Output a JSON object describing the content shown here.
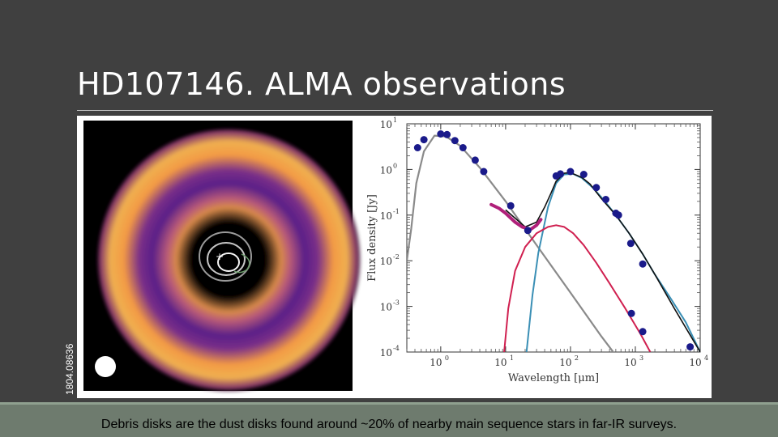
{
  "slide": {
    "title": "HD107146. ALMA observations",
    "side_identifier": "1804.08636",
    "footer": "Debris disks are the dust disks found around ~20% of nearby main sequence stars in far-IR surveys."
  },
  "colors": {
    "background": "#404040",
    "footer_bar": "#6e7b6e",
    "ring_outer": "#f0a040",
    "ring_inner": "#6a2a88",
    "stellar_curve": "#8a8a8a",
    "cold_disk_curve": "#3a8fb5",
    "warm_disk_curve": "#d02050",
    "data_points": "#1a1a8a"
  },
  "chart_data": {
    "type": "scatter",
    "xscale": "log",
    "yscale": "log",
    "xlabel": "Wavelength [μm]",
    "ylabel": "Flux density [Jy]",
    "xlim": [
      0.3,
      10000
    ],
    "ylim": [
      0.0001,
      10
    ],
    "x_ticks": [
      {
        "value": 1,
        "base": "10",
        "exp": "0"
      },
      {
        "value": 10,
        "base": "10",
        "exp": "1"
      },
      {
        "value": 100,
        "base": "10",
        "exp": "2"
      },
      {
        "value": 1000,
        "base": "10",
        "exp": "3"
      },
      {
        "value": 10000,
        "base": "10",
        "exp": "4"
      }
    ],
    "y_ticks": [
      {
        "value": 10,
        "base": "10",
        "exp": "1"
      },
      {
        "value": 1,
        "base": "10",
        "exp": "0"
      },
      {
        "value": 0.1,
        "base": "10",
        "exp": "-1"
      },
      {
        "value": 0.01,
        "base": "10",
        "exp": "-2"
      },
      {
        "value": 0.001,
        "base": "10",
        "exp": "-3"
      },
      {
        "value": 0.0001,
        "base": "10",
        "exp": "-4"
      }
    ],
    "points": [
      {
        "x": 0.44,
        "y": 3.0
      },
      {
        "x": 0.55,
        "y": 4.5
      },
      {
        "x": 1.0,
        "y": 6.0
      },
      {
        "x": 1.25,
        "y": 5.8
      },
      {
        "x": 1.65,
        "y": 4.3
      },
      {
        "x": 2.2,
        "y": 3.0
      },
      {
        "x": 3.4,
        "y": 1.6
      },
      {
        "x": 4.6,
        "y": 0.9
      },
      {
        "x": 12,
        "y": 0.16
      },
      {
        "x": 22,
        "y": 0.046
      },
      {
        "x": 60,
        "y": 0.72
      },
      {
        "x": 70,
        "y": 0.8
      },
      {
        "x": 100,
        "y": 0.9
      },
      {
        "x": 160,
        "y": 0.78
      },
      {
        "x": 250,
        "y": 0.4
      },
      {
        "x": 350,
        "y": 0.22
      },
      {
        "x": 500,
        "y": 0.11
      },
      {
        "x": 550,
        "y": 0.1
      },
      {
        "x": 850,
        "y": 0.024
      },
      {
        "x": 1300,
        "y": 0.0085
      },
      {
        "x": 870,
        "y": 0.0007
      },
      {
        "x": 1300,
        "y": 0.00028
      },
      {
        "x": 7000,
        "y": 0.00013
      }
    ],
    "ir_spectrum": {
      "x": [
        6,
        8,
        10,
        14,
        18,
        24,
        30,
        35
      ],
      "y": [
        0.17,
        0.14,
        0.11,
        0.07,
        0.055,
        0.048,
        0.06,
        0.08
      ]
    },
    "series_curves": [
      {
        "key": "stellar",
        "x": [
          0.3,
          0.35,
          0.42,
          0.55,
          0.8,
          1.2,
          2,
          4,
          10,
          30,
          100,
          300,
          600
        ],
        "y": [
          0.01,
          0.05,
          0.5,
          2.5,
          5.5,
          5.3,
          3.3,
          1.1,
          0.2,
          0.022,
          0.002,
          0.00022,
          6e-05
        ]
      },
      {
        "key": "cold_disk",
        "x": [
          21,
          26,
          32,
          45,
          60,
          80,
          110,
          150,
          220,
          330,
          500,
          800,
          1300,
          2000,
          3500,
          6000,
          10000
        ],
        "y": [
          0.0001,
          0.0018,
          0.015,
          0.15,
          0.5,
          0.78,
          0.8,
          0.65,
          0.4,
          0.21,
          0.1,
          0.04,
          0.014,
          0.005,
          0.0015,
          0.00045,
          0.0001
        ]
      },
      {
        "key": "warm_disk",
        "x": [
          9.5,
          11,
          14,
          20,
          30,
          45,
          60,
          80,
          110,
          160,
          250,
          400,
          700,
          1200,
          1700
        ],
        "y": [
          0.0001,
          0.0009,
          0.006,
          0.02,
          0.04,
          0.055,
          0.06,
          0.055,
          0.04,
          0.022,
          0.009,
          0.0032,
          0.0009,
          0.00025,
          0.0001
        ]
      },
      {
        "key": "total",
        "x": [
          10,
          20,
          30,
          40,
          50,
          60,
          80,
          100,
          150,
          200,
          300,
          500,
          800,
          1300,
          2000,
          4000,
          10000
        ],
        "y": [
          0.13,
          0.055,
          0.07,
          0.15,
          0.3,
          0.55,
          0.83,
          0.85,
          0.67,
          0.48,
          0.23,
          0.1,
          0.04,
          0.014,
          0.005,
          0.0009,
          0.0001
        ]
      }
    ]
  }
}
